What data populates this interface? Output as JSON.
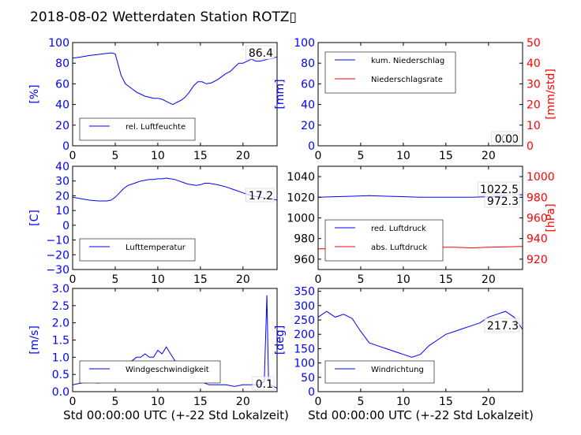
{
  "title": "2018-08-02 Wetterdaten Station ROTZ▯",
  "xlabel": "Std 00:00:00 UTC (+-22 Std Lokalzeit)",
  "colors": {
    "left_axis": "#0000ff",
    "right_axis": "#ff0000",
    "series_blue": "#0000ff",
    "series_red": "#ff0000",
    "series_light": "#8080ff"
  },
  "chart_data": [
    {
      "id": "humidity",
      "type": "line",
      "ylabel": "[%]",
      "xlim": [
        0,
        24
      ],
      "ylim": [
        0,
        100
      ],
      "xticks": [
        "0",
        "5",
        "10",
        "15",
        "20"
      ],
      "yticks": [
        "0",
        "20",
        "40",
        "60",
        "80",
        "100"
      ],
      "legend": [
        "rel. Luftfeuchte"
      ],
      "last_value": "86.4",
      "series": [
        {
          "name": "rel. Luftfeuchte",
          "color": "#0000ff",
          "x": [
            0,
            1,
            2,
            3,
            4,
            4.6,
            5,
            5.3,
            5.7,
            6.2,
            7,
            7.5,
            8,
            8.5,
            9,
            9.5,
            10,
            10.5,
            11,
            11.5,
            11.8,
            12.2,
            12.7,
            13.2,
            13.7,
            14.2,
            14.7,
            15.2,
            15.7,
            16.3,
            17,
            17.5,
            18,
            18.5,
            19,
            19.5,
            20,
            20.5,
            21,
            21.5,
            22,
            22.5,
            23,
            23.5,
            24
          ],
          "y": [
            85,
            86,
            87.5,
            88.5,
            89.5,
            90,
            89,
            80,
            68,
            60,
            55,
            52,
            50,
            48,
            47,
            46,
            46,
            45,
            43,
            41,
            40,
            42,
            44,
            47,
            52,
            58,
            62,
            62,
            60,
            61,
            64,
            67,
            70,
            72,
            76,
            80,
            80,
            82,
            84,
            82,
            82,
            83,
            84,
            85,
            86
          ]
        }
      ]
    },
    {
      "id": "precip",
      "type": "line",
      "ylabel": "[mm]",
      "ylabel_right": "[mm/std]",
      "xlim": [
        0,
        24
      ],
      "ylim": [
        0,
        100
      ],
      "ylim_right": [
        0,
        50
      ],
      "xticks": [
        "0",
        "5",
        "10",
        "15",
        "20"
      ],
      "yticks": [
        "0",
        "20",
        "40",
        "60",
        "80",
        "100"
      ],
      "yticks_right": [
        "0",
        "10",
        "20",
        "30",
        "40",
        "50"
      ],
      "legend": [
        "kum. Niederschlag",
        "Niederschlagsrate"
      ],
      "last_values": [
        "0.0",
        "0.0"
      ],
      "series": [
        {
          "name": "kum. Niederschlag",
          "color": "#0000ff",
          "x": [
            0,
            24
          ],
          "y": [
            0,
            0
          ]
        },
        {
          "name": "Niederschlagsrate",
          "color": "#ff0000",
          "x": [
            0,
            24
          ],
          "y": [
            0,
            0
          ]
        }
      ]
    },
    {
      "id": "temperature",
      "type": "line",
      "ylabel": "[C]",
      "xlim": [
        0,
        24
      ],
      "ylim": [
        -30,
        40
      ],
      "xticks": [
        "0",
        "5",
        "10",
        "15",
        "20"
      ],
      "yticks": [
        "−30",
        "−20",
        "−10",
        "0",
        "10",
        "20",
        "30",
        "40"
      ],
      "legend": [
        "Lufttemperatur"
      ],
      "last_value": "17.2",
      "series": [
        {
          "name": "Lufttemperatur",
          "color": "#0000ff",
          "x": [
            0,
            1,
            2,
            3,
            4,
            4.5,
            5,
            5.5,
            6,
            6.5,
            7,
            7.5,
            8,
            8.5,
            9,
            9.5,
            10,
            10.5,
            11,
            11.5,
            12,
            12.5,
            13,
            13.5,
            14,
            14.5,
            15,
            15.5,
            16,
            16.5,
            17,
            18,
            19,
            20,
            21,
            22,
            23,
            24
          ],
          "y": [
            19,
            18,
            17,
            16.5,
            16.5,
            17,
            19,
            22,
            25,
            27,
            28,
            29,
            30,
            30.5,
            31,
            31,
            31.5,
            31.5,
            32,
            31.5,
            31,
            30,
            29,
            28,
            27.5,
            27,
            27.5,
            28.5,
            28.5,
            28,
            27.5,
            26,
            24,
            22,
            20,
            19,
            18,
            17.2
          ]
        }
      ]
    },
    {
      "id": "pressure",
      "type": "line",
      "ylabel_right": "[hPa]",
      "xlim": [
        0,
        24
      ],
      "ylim": [
        950,
        1050
      ],
      "ylim_right": [
        910,
        1010
      ],
      "xticks": [
        "0",
        "5",
        "10",
        "15",
        "20"
      ],
      "yticks": [
        "960",
        "980",
        "1000",
        "1020",
        "1040"
      ],
      "yticks_right": [
        "920",
        "940",
        "960",
        "980",
        "1000"
      ],
      "legend": [
        "red. Luftdruck",
        "abs. Luftdruck"
      ],
      "last_values": [
        "1022.5",
        "972.3"
      ],
      "series": [
        {
          "name": "red. Luftdruck",
          "color": "#0000ff",
          "x": [
            0,
            2,
            4,
            6,
            8,
            10,
            12,
            14,
            16,
            18,
            20,
            22,
            24
          ],
          "y": [
            1020,
            1020.5,
            1021,
            1021.5,
            1021,
            1020.5,
            1020,
            1020,
            1020,
            1020,
            1020.5,
            1021.5,
            1022.5
          ]
        },
        {
          "name": "abs. Luftdruck",
          "color": "#ff0000",
          "x": [
            0,
            2,
            4,
            6,
            8,
            10,
            12,
            14,
            16,
            18,
            20,
            22,
            24
          ],
          "y": [
            970,
            970,
            970.5,
            971,
            971.5,
            972,
            971.5,
            971.5,
            971.5,
            971,
            971.5,
            972,
            972.3
          ]
        }
      ]
    },
    {
      "id": "windspeed",
      "type": "line",
      "ylabel": "[m/s]",
      "xlim": [
        0,
        24
      ],
      "ylim": [
        0,
        3.0
      ],
      "xticks": [
        "0",
        "5",
        "10",
        "15",
        "20"
      ],
      "yticks": [
        "0.0",
        "0.5",
        "1.0",
        "1.5",
        "2.0",
        "2.5",
        "3.0"
      ],
      "legend": [
        "Windgeschwindigkeit"
      ],
      "last_value": "0.1",
      "series": [
        {
          "name": "Windgeschwindigkeit",
          "color": "#0000ff",
          "x": [
            0,
            1,
            2,
            3,
            4,
            4.5,
            5,
            5.5,
            6,
            6.5,
            7,
            7.5,
            8,
            8.5,
            9,
            9.5,
            10,
            10.5,
            11,
            11.5,
            12,
            12.5,
            13,
            13.5,
            14,
            15,
            16,
            17,
            18,
            19,
            20,
            21,
            22,
            22.5,
            22.8,
            23,
            23.2,
            24
          ],
          "y": [
            0.2,
            0.25,
            0.3,
            0.25,
            0.3,
            0.4,
            0.5,
            0.6,
            0.7,
            0.8,
            0.9,
            1.0,
            1.0,
            1.1,
            1.0,
            1.0,
            1.2,
            1.1,
            1.3,
            1.1,
            0.9,
            0.7,
            0.6,
            0.4,
            0.3,
            0.3,
            0.2,
            0.2,
            0.2,
            0.15,
            0.2,
            0.2,
            0.2,
            0.3,
            2.8,
            0.3,
            0.2,
            0.1
          ]
        }
      ]
    },
    {
      "id": "winddir",
      "type": "line",
      "ylabel": "[deg]",
      "xlim": [
        0,
        24
      ],
      "ylim": [
        0,
        360
      ],
      "xticks": [
        "0",
        "5",
        "10",
        "15",
        "20"
      ],
      "yticks": [
        "0",
        "50",
        "100",
        "150",
        "200",
        "250",
        "300",
        "350"
      ],
      "legend": [
        "Windrichtung"
      ],
      "last_value": "217.3",
      "series": [
        {
          "name": "Windrichtung",
          "color": "#0000ff",
          "x": [
            0,
            1,
            2,
            3,
            4,
            5,
            6,
            7,
            8,
            9,
            10,
            11,
            12,
            13,
            14,
            15,
            16,
            17,
            18,
            19,
            20,
            21,
            22,
            23,
            24
          ],
          "y": [
            260,
            280,
            260,
            270,
            255,
            210,
            170,
            160,
            150,
            140,
            130,
            120,
            130,
            160,
            180,
            200,
            210,
            220,
            230,
            240,
            260,
            270,
            280,
            260,
            217
          ]
        }
      ]
    }
  ]
}
